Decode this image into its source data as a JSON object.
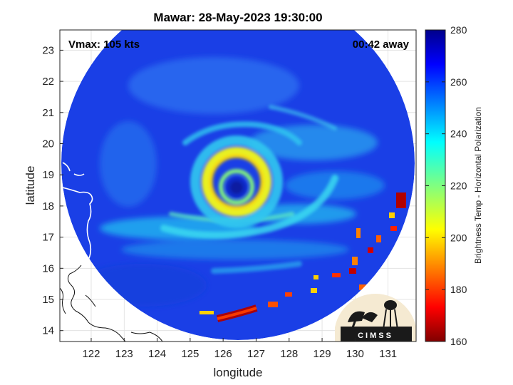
{
  "title": "Mawar: 28-May-2023 19:30:00",
  "vmax_text": "Vmax: 105 kts",
  "time_away_text": "00:42 away",
  "xlabel": "longitude",
  "ylabel": "latitude",
  "colorbar_label": "Brightness Temp - Horizontal Polarization",
  "logo_text": "CIMSS",
  "chart_data": {
    "type": "heatmap",
    "title": "Mawar: 28-May-2023 19:30:00",
    "xlabel": "longitude",
    "ylabel": "latitude",
    "xlim": [
      121.05,
      131.85
    ],
    "ylim": [
      13.65,
      23.65
    ],
    "x_ticks": [
      122,
      123,
      124,
      125,
      126,
      127,
      128,
      129,
      130,
      131
    ],
    "y_ticks": [
      14,
      15,
      16,
      17,
      18,
      19,
      20,
      21,
      22,
      23
    ],
    "grid": true,
    "colorbar": {
      "label": "Brightness Temp - Horizontal Polarization",
      "min": 160,
      "max": 280,
      "ticks": [
        160,
        180,
        200,
        220,
        240,
        260,
        280
      ],
      "colormap": "jet"
    },
    "storm_center": {
      "lon": 126.6,
      "lat": 18.6
    },
    "swath_center": {
      "lon": 126.65,
      "lat": 18.8
    },
    "swath_radius_deg": 5.0,
    "eye_brightness_temp": 262,
    "eyewall_brightness_temp": 212,
    "cold_rainband_brightness_temp": 165,
    "background_brightness_temp": 268
  }
}
